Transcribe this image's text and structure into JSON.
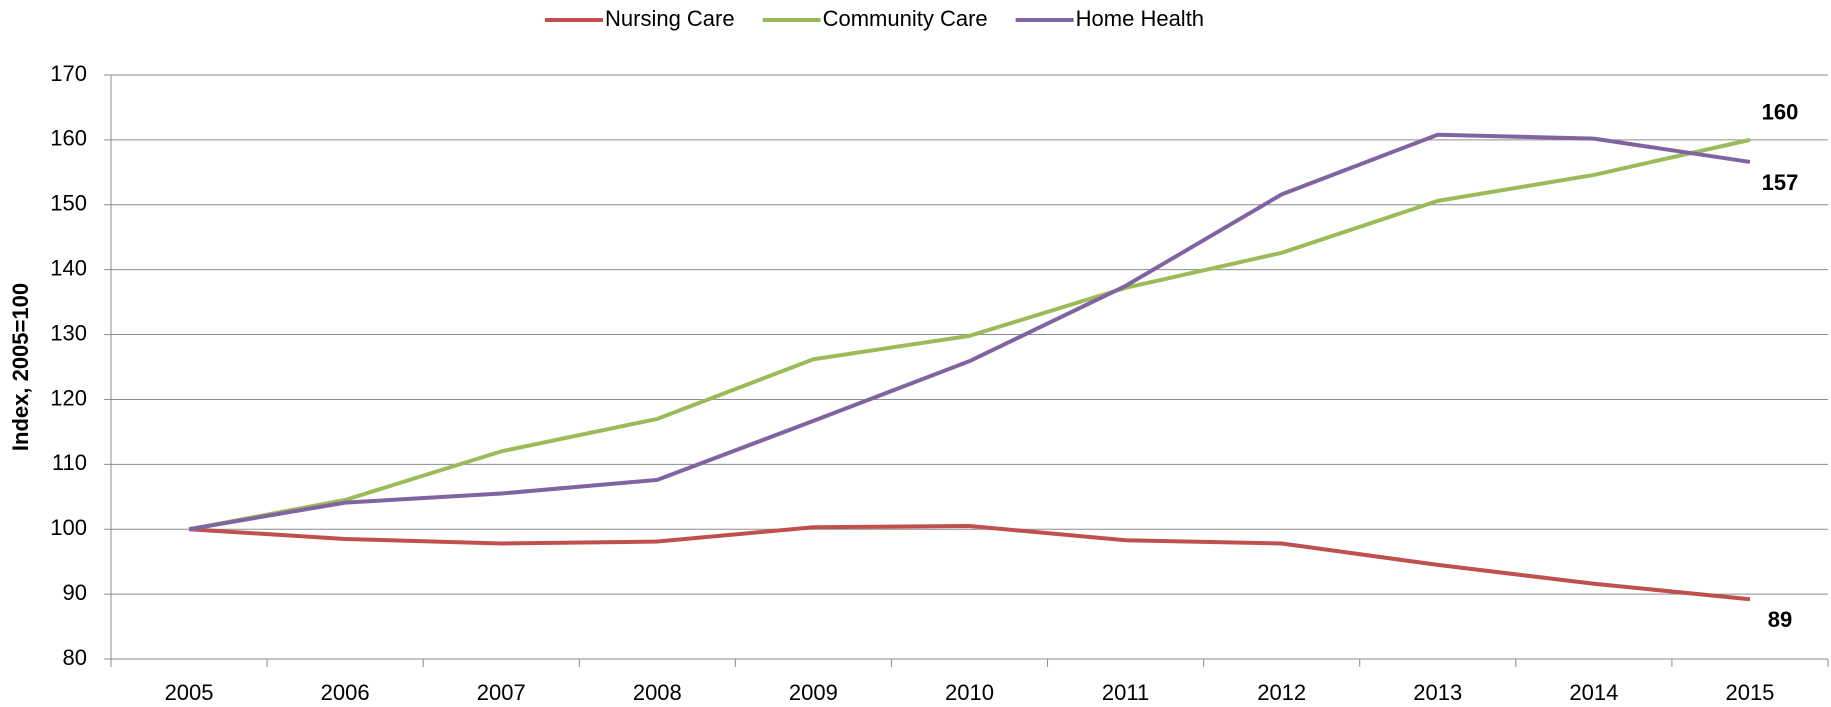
{
  "chart_data": {
    "type": "line",
    "y_label": "Index, 2005=100",
    "categories": [
      "2005",
      "2006",
      "2007",
      "2008",
      "2009",
      "2010",
      "2011",
      "2012",
      "2013",
      "2014",
      "2015"
    ],
    "series": [
      {
        "name": "Nursing Care",
        "color": "#c0504d",
        "values": [
          100,
          98.5,
          97.8,
          98.1,
          100.3,
          100.5,
          98.3,
          97.8,
          94.5,
          91.6,
          89.2
        ],
        "value_labels": [
          null,
          null,
          null,
          null,
          null,
          null,
          null,
          null,
          null,
          null,
          "89"
        ]
      },
      {
        "name": "Community Care",
        "color": "#9bbb59",
        "values": [
          100,
          104.5,
          112,
          117,
          126.2,
          129.8,
          137.2,
          142.6,
          150.6,
          154.6,
          160
        ],
        "value_labels": [
          null,
          null,
          null,
          null,
          null,
          null,
          null,
          null,
          null,
          null,
          "160"
        ]
      },
      {
        "name": "Home Health",
        "color": "#8064a2",
        "values": [
          100,
          104.1,
          105.5,
          107.6,
          116.7,
          125.9,
          137.5,
          151.6,
          160.8,
          160.2,
          156.6
        ],
        "value_labels": [
          null,
          null,
          null,
          null,
          null,
          null,
          null,
          null,
          null,
          null,
          "157"
        ]
      }
    ],
    "ylim": [
      80,
      170
    ],
    "yticks": [
      80,
      90,
      100,
      110,
      120,
      130,
      140,
      150,
      160,
      170
    ],
    "grid": true,
    "legend": "top"
  }
}
